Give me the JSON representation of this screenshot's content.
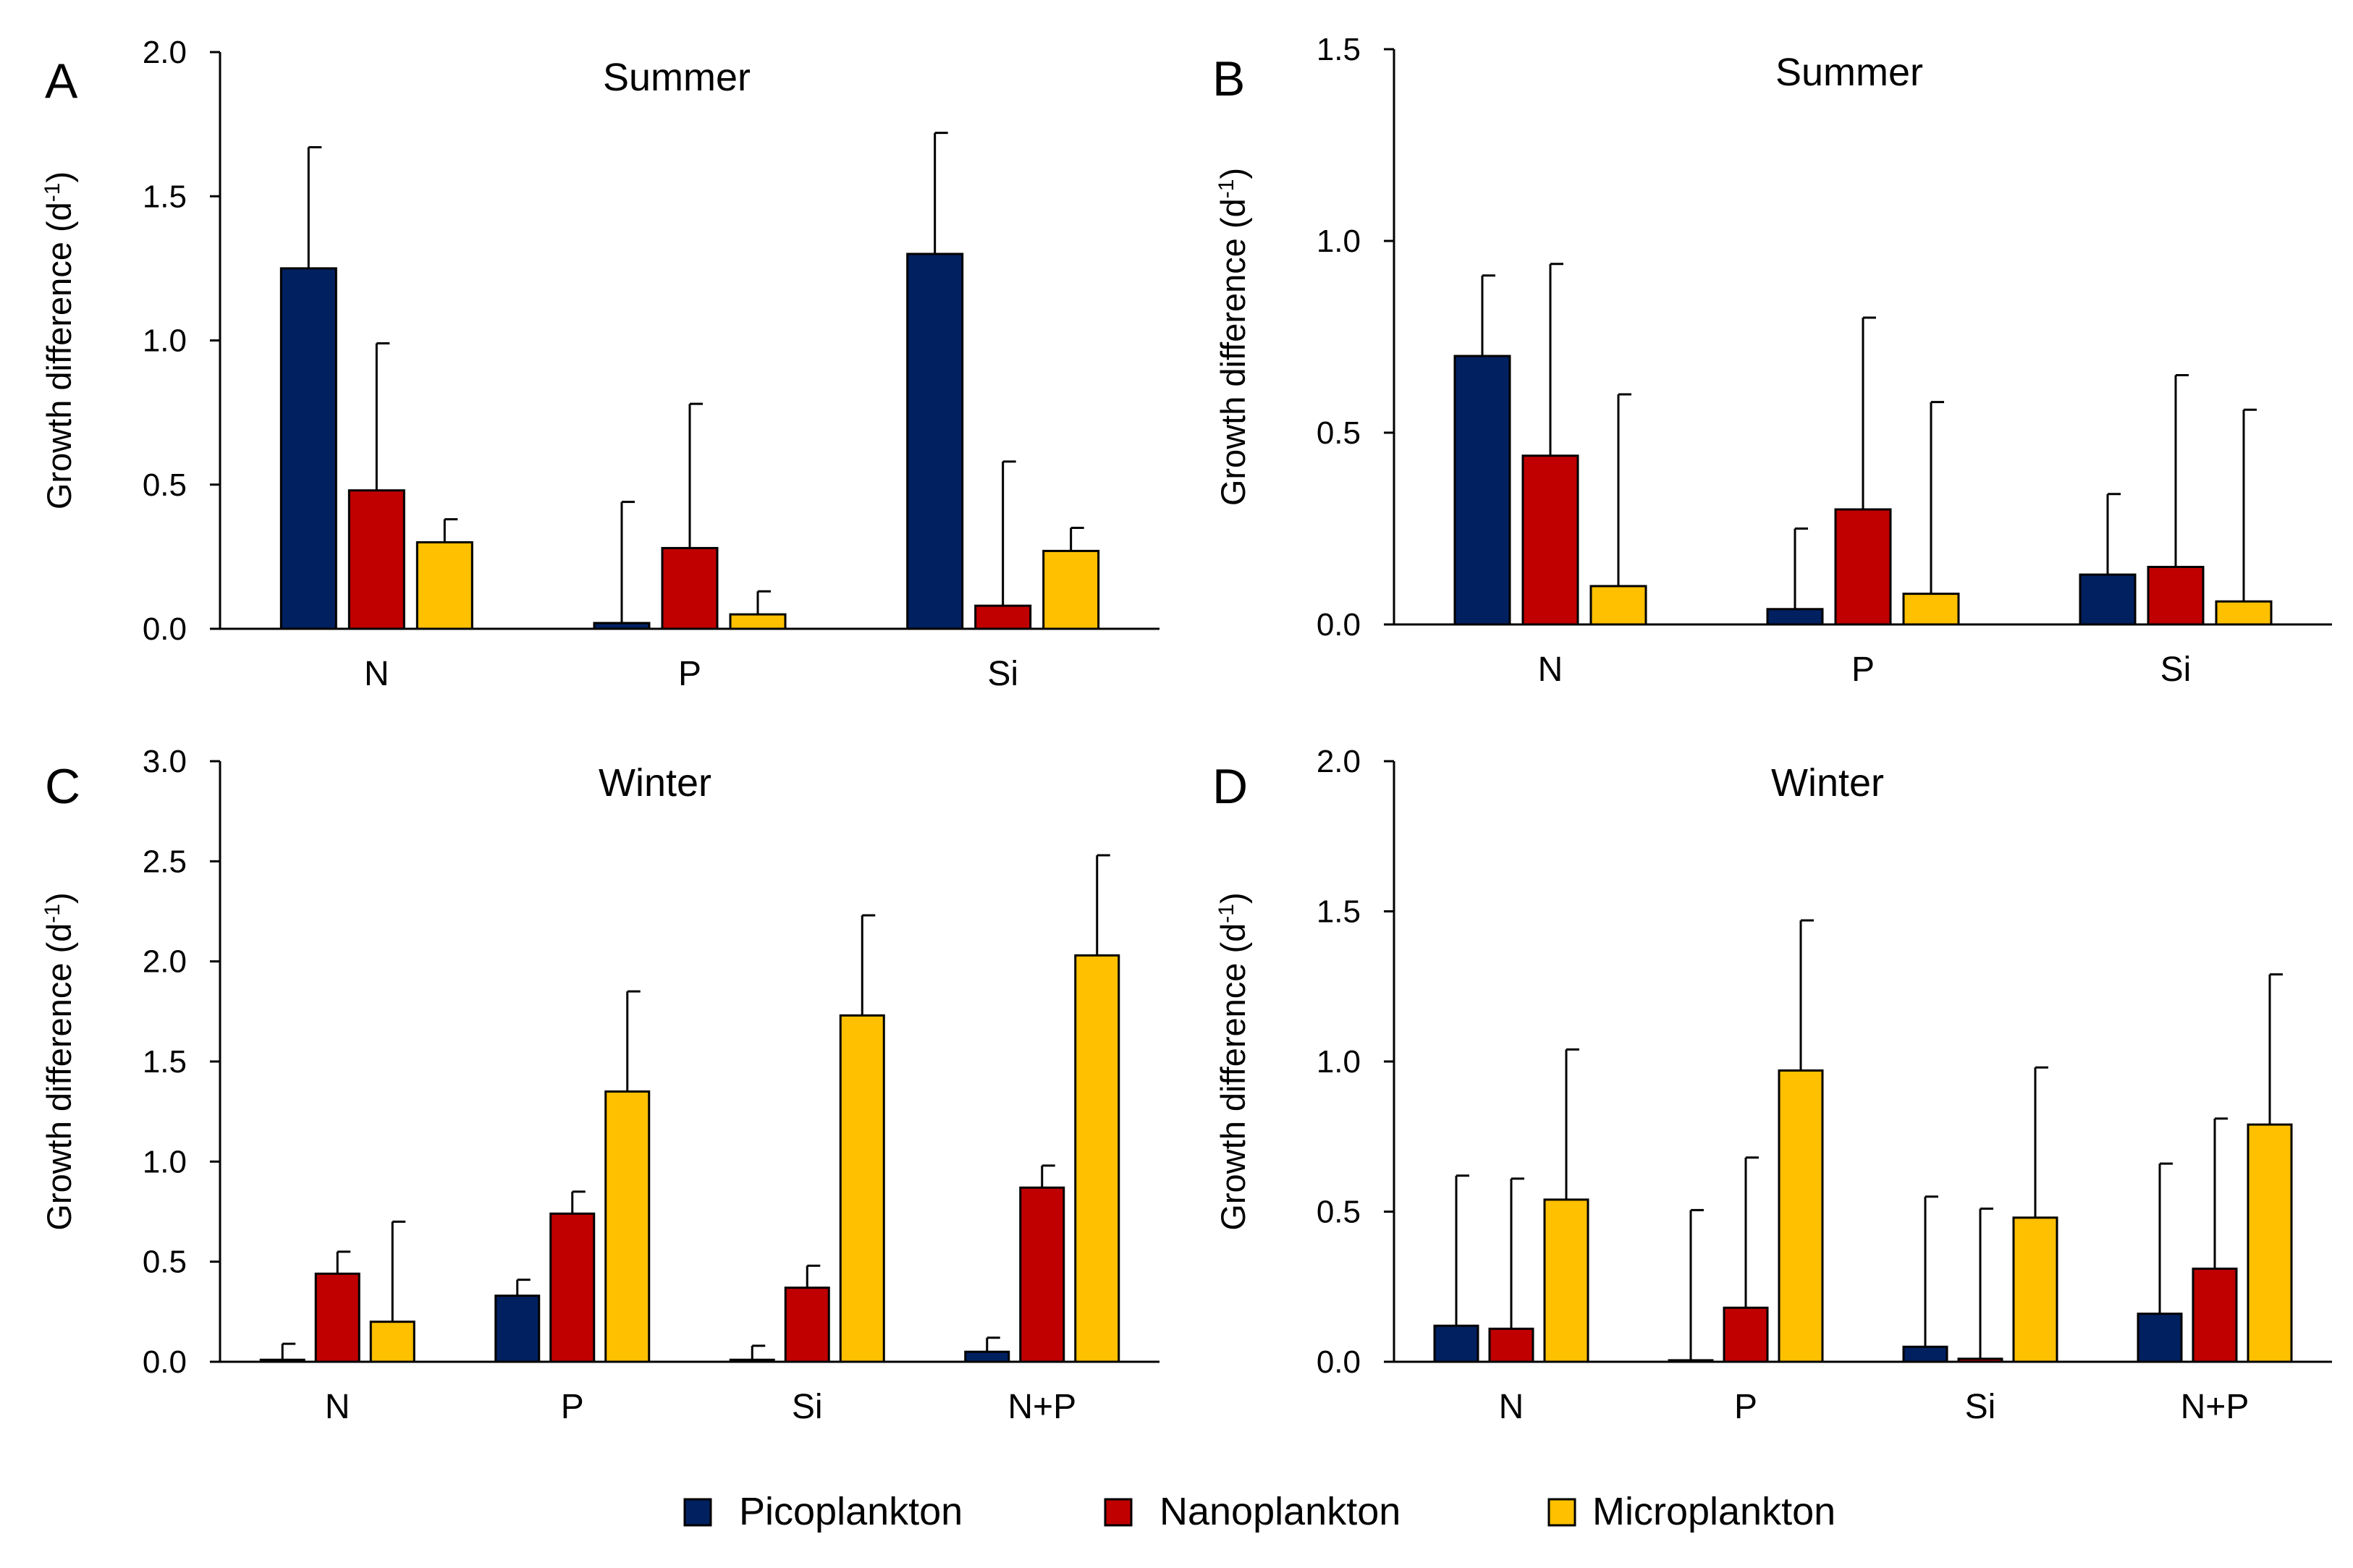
{
  "legend": [
    {
      "name": "Picoplankton",
      "color": "#002060"
    },
    {
      "name": "Nanoplankton",
      "color": "#C00000"
    },
    {
      "name": "Microplankton",
      "color": "#FFC000"
    }
  ],
  "chart_data": [
    {
      "id": "A",
      "letter": "A",
      "type": "bar",
      "title": "Summer",
      "ylabel_text": "Growth difference (d",
      "ylabel_sup": "-1",
      "ylabel_close": ")",
      "ylim": [
        0,
        2.0
      ],
      "yticks": [
        "0.0",
        "0.5",
        "1.0",
        "1.5",
        "2.0"
      ],
      "categories": [
        "N",
        "P",
        "Si"
      ],
      "series": [
        {
          "name": "Picoplankton",
          "values": [
            1.25,
            0.02,
            1.3
          ],
          "errors": [
            0.42,
            0.42,
            0.42
          ]
        },
        {
          "name": "Nanoplankton",
          "values": [
            0.48,
            0.28,
            0.08
          ],
          "errors": [
            0.51,
            0.5,
            0.5
          ]
        },
        {
          "name": "Microplankton",
          "values": [
            0.3,
            0.05,
            0.27
          ],
          "errors": [
            0.08,
            0.08,
            0.08
          ]
        }
      ]
    },
    {
      "id": "B",
      "letter": "B",
      "type": "bar",
      "title": "Summer",
      "ylabel_text": "Growth difference (d",
      "ylabel_sup": "-1",
      "ylabel_close": ")",
      "ylim": [
        0,
        1.5
      ],
      "yticks": [
        "0.0",
        "0.5",
        "1.0",
        "1.5"
      ],
      "categories": [
        "N",
        "P",
        "Si"
      ],
      "series": [
        {
          "name": "Picoplankton",
          "values": [
            0.7,
            0.04,
            0.13
          ],
          "errors": [
            0.21,
            0.21,
            0.21
          ]
        },
        {
          "name": "Nanoplankton",
          "values": [
            0.44,
            0.3,
            0.15
          ],
          "errors": [
            0.5,
            0.5,
            0.5
          ]
        },
        {
          "name": "Microplankton",
          "values": [
            0.1,
            0.08,
            0.06
          ],
          "errors": [
            0.5,
            0.5,
            0.5
          ]
        }
      ]
    },
    {
      "id": "C",
      "letter": "C",
      "type": "bar",
      "title": "Winter",
      "ylabel_text": "Growth difference (d",
      "ylabel_sup": "-1",
      "ylabel_close": ")",
      "ylim": [
        0,
        3.0
      ],
      "yticks": [
        "0.0",
        "0.5",
        "1.0",
        "1.5",
        "2.0",
        "2.5",
        "3.0"
      ],
      "categories": [
        "N",
        "P",
        "Si",
        "N+P"
      ],
      "series": [
        {
          "name": "Picoplankton",
          "values": [
            0.01,
            0.33,
            0.01,
            0.05
          ],
          "errors": [
            0.08,
            0.08,
            0.07,
            0.07
          ]
        },
        {
          "name": "Nanoplankton",
          "values": [
            0.44,
            0.74,
            0.37,
            0.87
          ],
          "errors": [
            0.11,
            0.11,
            0.11,
            0.11
          ]
        },
        {
          "name": "Microplankton",
          "values": [
            0.2,
            1.35,
            1.73,
            2.03
          ],
          "errors": [
            0.5,
            0.5,
            0.5,
            0.5
          ]
        }
      ]
    },
    {
      "id": "D",
      "letter": "D",
      "type": "bar",
      "title": "Winter",
      "ylabel_text": "Growth difference (d",
      "ylabel_sup": "-1",
      "ylabel_close": ")",
      "ylim": [
        0,
        2.0
      ],
      "yticks": [
        "0.0",
        "0.5",
        "1.0",
        "1.5",
        "2.0"
      ],
      "categories": [
        "N",
        "P",
        "Si",
        "N+P"
      ],
      "series": [
        {
          "name": "Picoplankton",
          "values": [
            0.12,
            0.005,
            0.05,
            0.16
          ],
          "errors": [
            0.5,
            0.5,
            0.5,
            0.5
          ]
        },
        {
          "name": "Nanoplankton",
          "values": [
            0.11,
            0.18,
            0.01,
            0.31
          ],
          "errors": [
            0.5,
            0.5,
            0.5,
            0.5
          ]
        },
        {
          "name": "Microplankton",
          "values": [
            0.54,
            0.97,
            0.48,
            0.79
          ],
          "errors": [
            0.5,
            0.5,
            0.5,
            0.5
          ]
        }
      ]
    }
  ]
}
